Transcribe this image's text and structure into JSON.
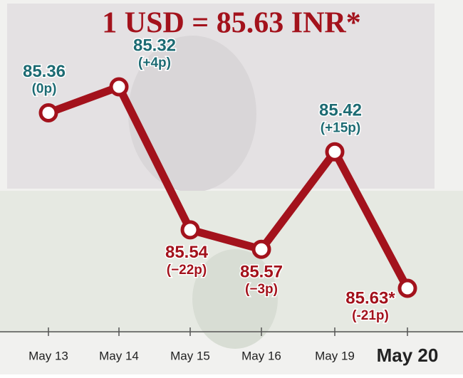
{
  "chart_data": {
    "type": "line",
    "title": "1 USD = 85.63 INR*",
    "categories": [
      "May 13",
      "May 14",
      "May 15",
      "May 16",
      "May 19",
      "May 20"
    ],
    "values": [
      85.36,
      85.32,
      85.54,
      85.57,
      85.42,
      85.63
    ],
    "value_labels": [
      "85.36",
      "85.32",
      "85.54",
      "85.57",
      "85.42",
      "85.63*"
    ],
    "changes": [
      "(0p)",
      "(+4p)",
      "(−22p)",
      "(−3p)",
      "(+15p)",
      "(-21p)"
    ],
    "label_colors": [
      "#1d6b73",
      "#1d6b73",
      "#a3121c",
      "#a3121c",
      "#1d6b73",
      "#a3121c"
    ],
    "color": "#a3121c",
    "y_inverted": true
  }
}
